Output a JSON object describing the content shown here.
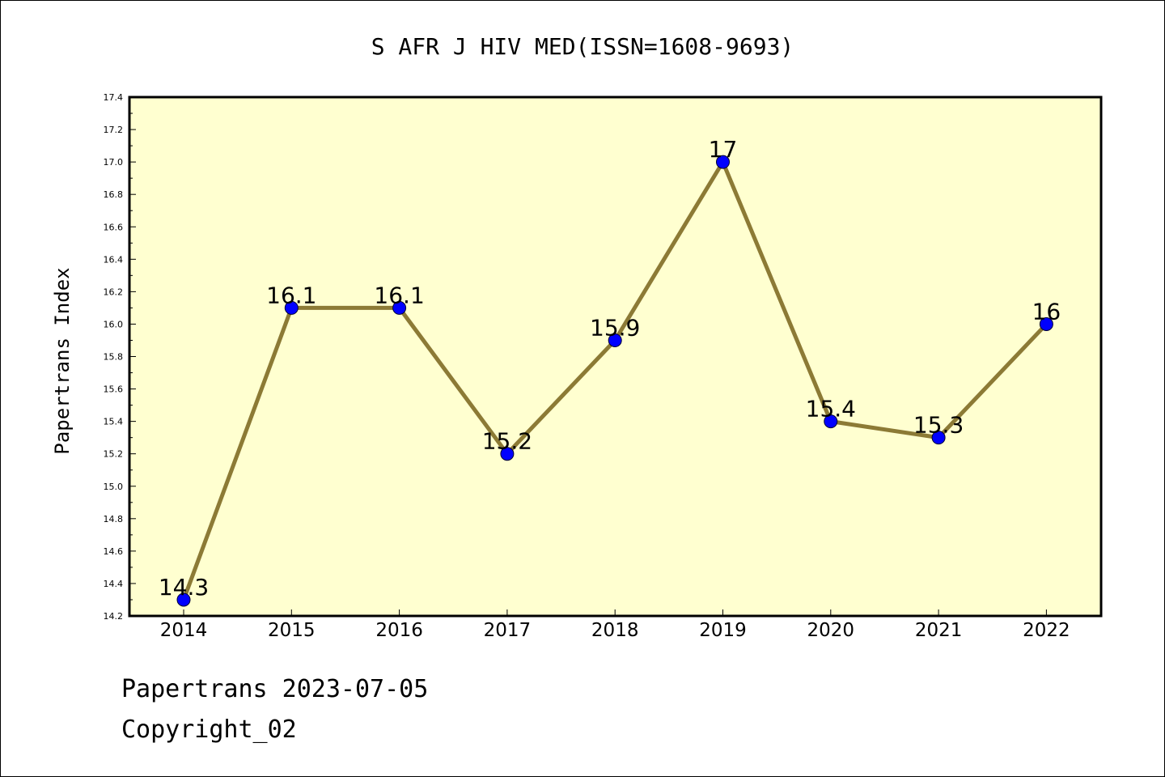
{
  "chart_data": {
    "type": "line",
    "title": "S AFR J HIV MED(ISSN=1608-9693)",
    "xlabel": "",
    "ylabel": "Papertrans Index",
    "categories": [
      "2014",
      "2015",
      "2016",
      "2017",
      "2018",
      "2019",
      "2020",
      "2021",
      "2022"
    ],
    "series": [
      {
        "name": "Papertrans Index",
        "values": [
          14.3,
          16.1,
          16.1,
          15.2,
          15.9,
          17.0,
          15.4,
          15.3,
          16.0
        ],
        "labels": [
          "14.3",
          "16.1",
          "16.1",
          "15.2",
          "15.9",
          "17",
          "15.4",
          "15.3",
          "16"
        ]
      }
    ],
    "ylim": [
      14.2,
      17.4
    ],
    "yticks": [
      "14.2",
      "14.4",
      "14.6",
      "14.8",
      "15.0",
      "15.2",
      "15.4",
      "15.6",
      "15.8",
      "16.0",
      "16.2",
      "16.4",
      "16.6",
      "16.8",
      "17.0",
      "17.2",
      "17.4"
    ],
    "grid": false,
    "legend": "none"
  },
  "footer": {
    "date_line": "Papertrans 2023-07-05",
    "copyright": "Copyright_02"
  },
  "colors": {
    "plot_background": "#ffffd0",
    "line": "#8c7a35",
    "marker": "#0000ff",
    "axis": "#000000"
  }
}
